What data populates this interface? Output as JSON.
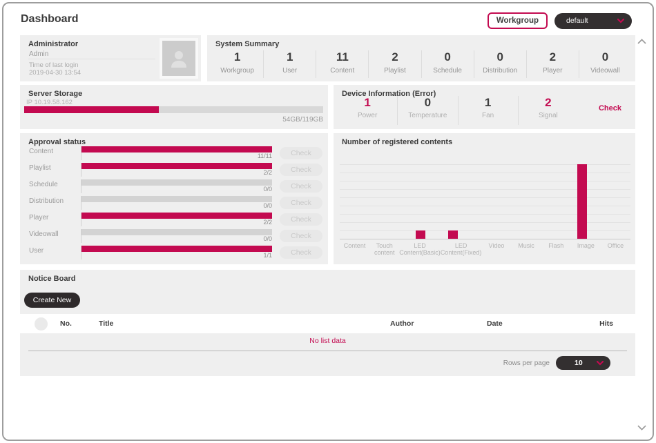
{
  "colors": {
    "accent": "#c30a50",
    "dark_button": "#2e2a2b",
    "panel_bg": "#efefef"
  },
  "header": {
    "title": "Dashboard",
    "workgroup_button": "Workgroup",
    "workgroup_select": "default"
  },
  "admin_panel": {
    "title": "Administrator",
    "name": "Admin",
    "last_login_label": "Time of last login",
    "last_login_value": "2019-04-30 13:54"
  },
  "system_summary": {
    "title": "System Summary",
    "items": [
      {
        "value": "1",
        "label": "Workgroup"
      },
      {
        "value": "1",
        "label": "User"
      },
      {
        "value": "11",
        "label": "Content"
      },
      {
        "value": "2",
        "label": "Playlist"
      },
      {
        "value": "0",
        "label": "Schedule"
      },
      {
        "value": "0",
        "label": "Distribution"
      },
      {
        "value": "2",
        "label": "Player"
      },
      {
        "value": "0",
        "label": "Videowall"
      }
    ]
  },
  "server_storage": {
    "title": "Server Storage",
    "ip": "IP 10.19.58.162",
    "usage": "54GB/119GB",
    "percent": 45
  },
  "device_info": {
    "title": "Device Information (Error)",
    "check_label": "Check",
    "items": [
      {
        "value": "1",
        "label": "Power",
        "alert": true
      },
      {
        "value": "0",
        "label": "Temperature",
        "alert": false
      },
      {
        "value": "1",
        "label": "Fan",
        "alert": false
      },
      {
        "value": "2",
        "label": "Signal",
        "alert": true
      }
    ]
  },
  "approval_status": {
    "title": "Approval status",
    "check_label": "Check",
    "rows": [
      {
        "label": "Content",
        "value": "11/11",
        "ratio": 1
      },
      {
        "label": "Playlist",
        "value": "2/2",
        "ratio": 1
      },
      {
        "label": "Schedule",
        "value": "0/0",
        "ratio": 0
      },
      {
        "label": "Distribution",
        "value": "0/0",
        "ratio": 0
      },
      {
        "label": "Player",
        "value": "2/2",
        "ratio": 1
      },
      {
        "label": "Videowall",
        "value": "0/0",
        "ratio": 0
      },
      {
        "label": "User",
        "value": "1/1",
        "ratio": 1
      }
    ]
  },
  "chart_data": {
    "type": "bar",
    "title": "Number of registered contents",
    "categories": [
      "Content",
      "Touch\ncontent",
      "LED\nContent(Basic)",
      "LED\nContent(Fixed)",
      "Video",
      "Music",
      "Flash",
      "Image",
      "Office"
    ],
    "values": [
      0,
      0,
      1,
      1,
      0,
      0,
      0,
      9,
      0
    ],
    "xlabel": "",
    "ylabel": "",
    "ylim": [
      0,
      9
    ],
    "grid": true,
    "bar_color": "#c30a50",
    "legend": false
  },
  "notice_board": {
    "title": "Notice Board",
    "create_button": "Create New",
    "columns": [
      "No.",
      "Title",
      "Author",
      "Date",
      "Hits"
    ],
    "empty_text": "No list data",
    "rows_per_page_label": "Rows per page",
    "rows_per_page_value": "10"
  }
}
